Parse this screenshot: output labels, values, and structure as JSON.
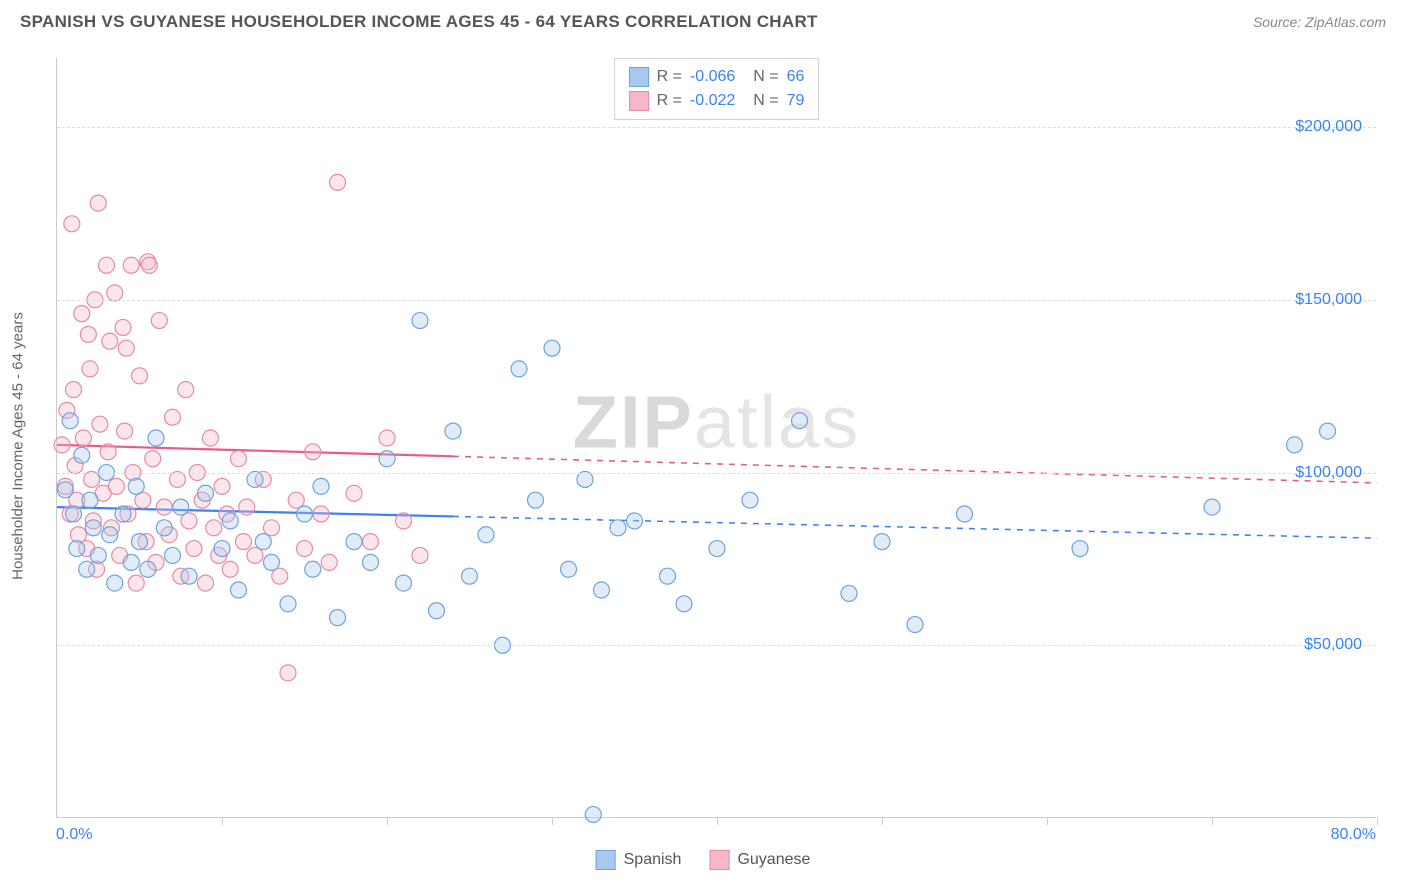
{
  "title": "SPANISH VS GUYANESE HOUSEHOLDER INCOME AGES 45 - 64 YEARS CORRELATION CHART",
  "source_label": "Source: ZipAtlas.com",
  "y_axis_title": "Householder Income Ages 45 - 64 years",
  "watermark": {
    "zip": "ZIP",
    "atlas": "atlas"
  },
  "chart": {
    "type": "scatter-with-regression",
    "background_color": "#ffffff",
    "grid_color": "#dddddd",
    "axis_color": "#cccccc",
    "tick_label_color": "#3b82f6",
    "tick_label_fontsize": 16,
    "axis_title_color": "#666666",
    "axis_title_fontsize": 15,
    "xlim": [
      0,
      80
    ],
    "ylim": [
      0,
      220000
    ],
    "x_tick_positions": [
      0,
      10,
      20,
      30,
      40,
      50,
      60,
      70,
      80
    ],
    "x_range_labels": {
      "left": "0.0%",
      "right": "80.0%"
    },
    "y_ticks": [
      {
        "value": 50000,
        "label": "$50,000"
      },
      {
        "value": 100000,
        "label": "$100,000"
      },
      {
        "value": 150000,
        "label": "$150,000"
      },
      {
        "value": 200000,
        "label": "$200,000"
      }
    ],
    "marker_radius": 8,
    "marker_stroke_width": 1.2,
    "marker_fill_opacity": 0.35,
    "regression_line_width": 2.2,
    "regression_dash_after_x": 24,
    "series": [
      {
        "id": "spanish",
        "label": "Spanish",
        "R": "-0.066",
        "N": "66",
        "color_fill": "#a9c8ef",
        "color_stroke": "#6ea3de",
        "line_color": "#3b82f6",
        "regression": {
          "x1": 0,
          "y1": 90000,
          "x2": 80,
          "y2": 81000
        },
        "points": [
          [
            0.5,
            95000
          ],
          [
            0.8,
            115000
          ],
          [
            1.0,
            88000
          ],
          [
            1.2,
            78000
          ],
          [
            1.5,
            105000
          ],
          [
            1.8,
            72000
          ],
          [
            2.0,
            92000
          ],
          [
            2.2,
            84000
          ],
          [
            2.5,
            76000
          ],
          [
            3.0,
            100000
          ],
          [
            3.2,
            82000
          ],
          [
            3.5,
            68000
          ],
          [
            4.0,
            88000
          ],
          [
            4.5,
            74000
          ],
          [
            4.8,
            96000
          ],
          [
            5.0,
            80000
          ],
          [
            5.5,
            72000
          ],
          [
            6.0,
            110000
          ],
          [
            6.5,
            84000
          ],
          [
            7.0,
            76000
          ],
          [
            7.5,
            90000
          ],
          [
            8.0,
            70000
          ],
          [
            9.0,
            94000
          ],
          [
            10.0,
            78000
          ],
          [
            10.5,
            86000
          ],
          [
            11.0,
            66000
          ],
          [
            12.0,
            98000
          ],
          [
            12.5,
            80000
          ],
          [
            13.0,
            74000
          ],
          [
            14.0,
            62000
          ],
          [
            15.0,
            88000
          ],
          [
            15.5,
            72000
          ],
          [
            16.0,
            96000
          ],
          [
            17.0,
            58000
          ],
          [
            18.0,
            80000
          ],
          [
            19.0,
            74000
          ],
          [
            20.0,
            104000
          ],
          [
            21.0,
            68000
          ],
          [
            22.0,
            144000
          ],
          [
            23.0,
            60000
          ],
          [
            24.0,
            112000
          ],
          [
            25.0,
            70000
          ],
          [
            26.0,
            82000
          ],
          [
            27.0,
            50000
          ],
          [
            28.0,
            130000
          ],
          [
            29.0,
            92000
          ],
          [
            30.0,
            136000
          ],
          [
            31.0,
            72000
          ],
          [
            32.0,
            98000
          ],
          [
            32.5,
            1000
          ],
          [
            33.0,
            66000
          ],
          [
            34.0,
            84000
          ],
          [
            35.0,
            86000
          ],
          [
            37.0,
            70000
          ],
          [
            38.0,
            62000
          ],
          [
            40.0,
            78000
          ],
          [
            42.0,
            92000
          ],
          [
            45.0,
            115000
          ],
          [
            48.0,
            65000
          ],
          [
            50.0,
            80000
          ],
          [
            52.0,
            56000
          ],
          [
            55.0,
            88000
          ],
          [
            62.0,
            78000
          ],
          [
            70.0,
            90000
          ],
          [
            75.0,
            108000
          ],
          [
            77.0,
            112000
          ]
        ]
      },
      {
        "id": "guyanese",
        "label": "Guyanese",
        "R": "-0.022",
        "N": "79",
        "color_fill": "#f4b8c8",
        "color_stroke": "#e78aa5",
        "line_color": "#e75a8a",
        "regression": {
          "x1": 0,
          "y1": 108000,
          "x2": 80,
          "y2": 97000
        },
        "points": [
          [
            0.3,
            108000
          ],
          [
            0.5,
            96000
          ],
          [
            0.6,
            118000
          ],
          [
            0.8,
            88000
          ],
          [
            1.0,
            124000
          ],
          [
            1.1,
            102000
          ],
          [
            1.2,
            92000
          ],
          [
            1.3,
            82000
          ],
          [
            1.5,
            146000
          ],
          [
            1.6,
            110000
          ],
          [
            1.8,
            78000
          ],
          [
            2.0,
            130000
          ],
          [
            2.1,
            98000
          ],
          [
            2.2,
            86000
          ],
          [
            2.4,
            72000
          ],
          [
            2.5,
            178000
          ],
          [
            2.6,
            114000
          ],
          [
            2.8,
            94000
          ],
          [
            3.0,
            160000
          ],
          [
            3.1,
            106000
          ],
          [
            3.3,
            84000
          ],
          [
            3.5,
            152000
          ],
          [
            3.6,
            96000
          ],
          [
            3.8,
            76000
          ],
          [
            4.0,
            142000
          ],
          [
            4.1,
            112000
          ],
          [
            4.3,
            88000
          ],
          [
            4.5,
            160000
          ],
          [
            4.6,
            100000
          ],
          [
            4.8,
            68000
          ],
          [
            5.0,
            128000
          ],
          [
            5.2,
            92000
          ],
          [
            5.4,
            80000
          ],
          [
            5.5,
            161000
          ],
          [
            5.8,
            104000
          ],
          [
            6.0,
            74000
          ],
          [
            6.2,
            144000
          ],
          [
            6.5,
            90000
          ],
          [
            6.8,
            82000
          ],
          [
            7.0,
            116000
          ],
          [
            7.3,
            98000
          ],
          [
            7.5,
            70000
          ],
          [
            7.8,
            124000
          ],
          [
            8.0,
            86000
          ],
          [
            8.3,
            78000
          ],
          [
            8.5,
            100000
          ],
          [
            8.8,
            92000
          ],
          [
            9.0,
            68000
          ],
          [
            9.3,
            110000
          ],
          [
            9.5,
            84000
          ],
          [
            9.8,
            76000
          ],
          [
            10.0,
            96000
          ],
          [
            10.3,
            88000
          ],
          [
            10.5,
            72000
          ],
          [
            11.0,
            104000
          ],
          [
            11.3,
            80000
          ],
          [
            11.5,
            90000
          ],
          [
            12.0,
            76000
          ],
          [
            12.5,
            98000
          ],
          [
            13.0,
            84000
          ],
          [
            13.5,
            70000
          ],
          [
            14.0,
            42000
          ],
          [
            14.5,
            92000
          ],
          [
            15.0,
            78000
          ],
          [
            15.5,
            106000
          ],
          [
            16.0,
            88000
          ],
          [
            16.5,
            74000
          ],
          [
            17.0,
            184000
          ],
          [
            18.0,
            94000
          ],
          [
            19.0,
            80000
          ],
          [
            20.0,
            110000
          ],
          [
            21.0,
            86000
          ],
          [
            22.0,
            76000
          ],
          [
            5.6,
            160000
          ],
          [
            2.3,
            150000
          ],
          [
            1.9,
            140000
          ],
          [
            3.2,
            138000
          ],
          [
            4.2,
            136000
          ],
          [
            0.9,
            172000
          ]
        ]
      }
    ],
    "stats_legend": {
      "title_color": "#666666",
      "value_color": "#3b82f6",
      "border_color": "#d0d0d0",
      "fontsize": 16
    },
    "bottom_legend_fontsize": 16
  }
}
